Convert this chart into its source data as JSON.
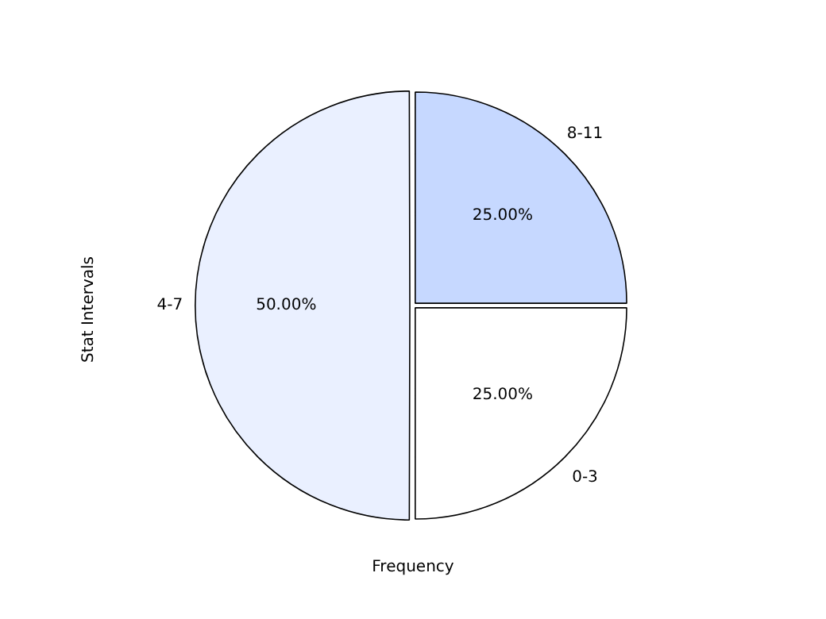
{
  "chart_data": {
    "type": "pie",
    "xlabel": "Frequency",
    "ylabel": "Stat Intervals",
    "categories": [
      "0-3",
      "4-7",
      "8-11"
    ],
    "values": [
      25,
      50,
      25
    ],
    "colors": [
      "#ffffff",
      "#eaf0ff",
      "#c6d8ff"
    ],
    "value_labels": [
      "25.00%",
      "50.00%",
      "25.00%"
    ],
    "legend": false
  }
}
